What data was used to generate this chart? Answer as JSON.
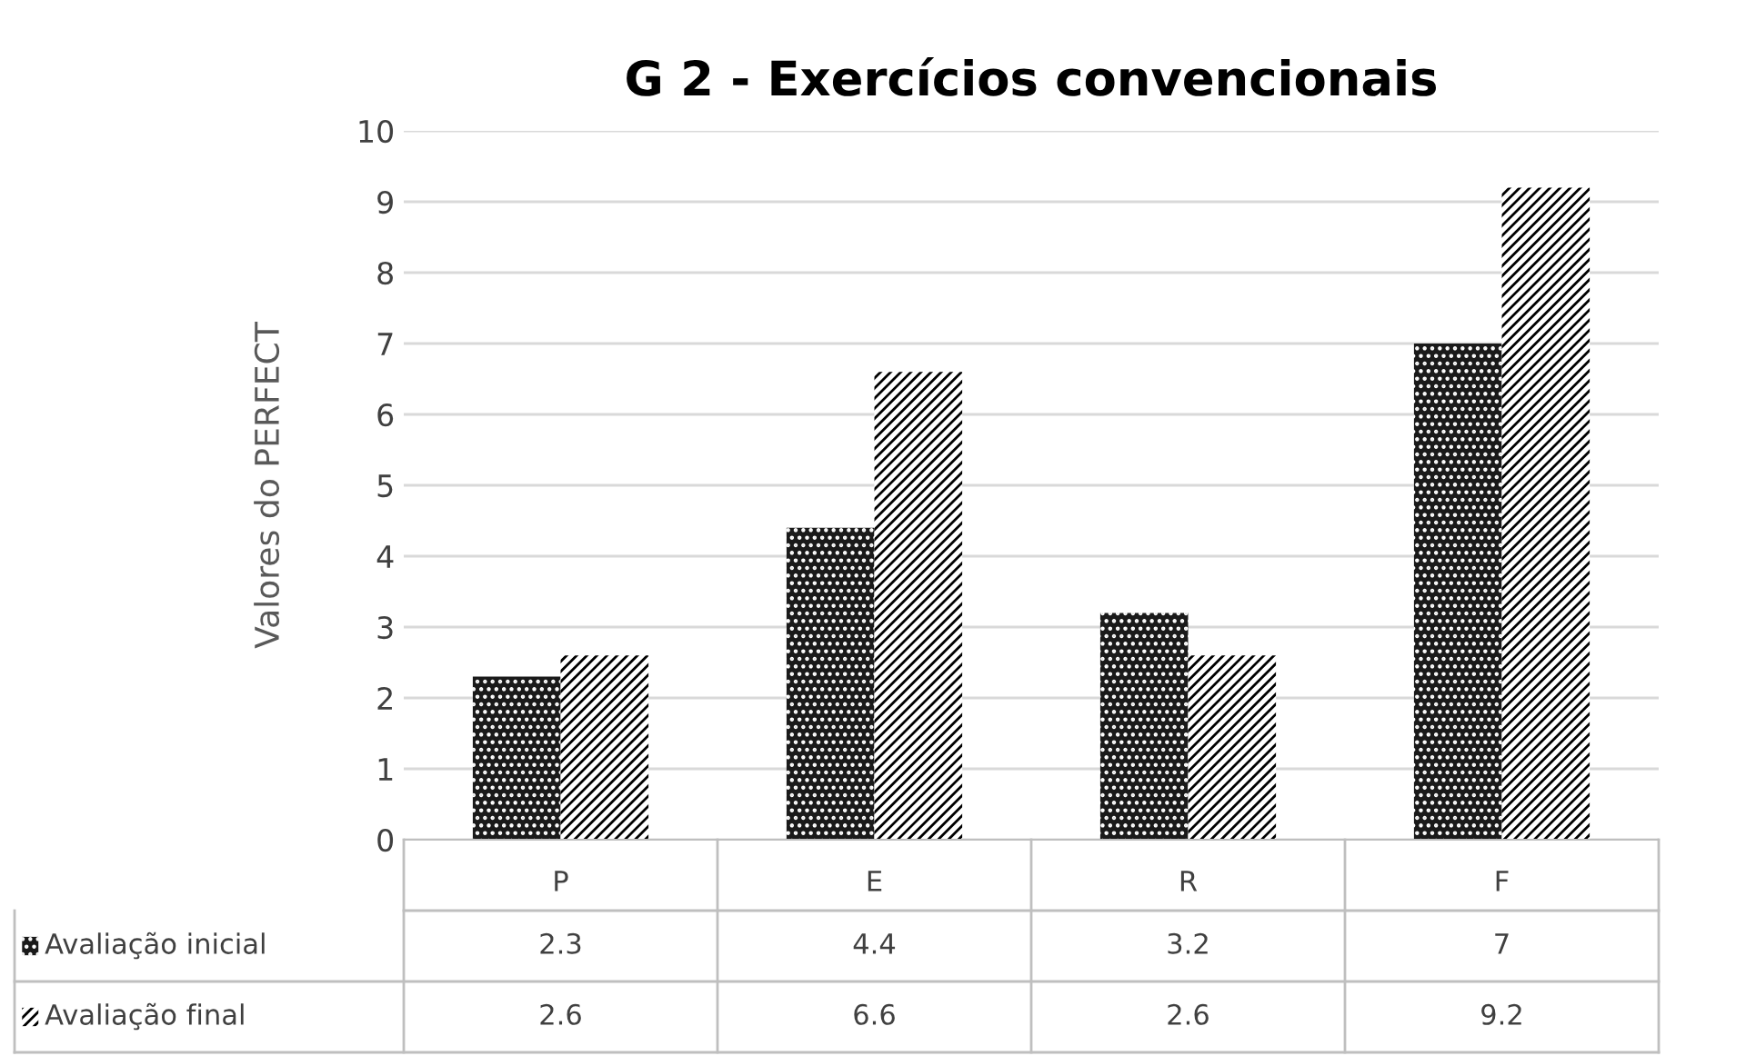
{
  "chart_data": {
    "type": "bar",
    "title": "G 2 - Exercícios convencionais",
    "ylabel": "Valores do PERFECT",
    "categories": [
      "P",
      "E",
      "R",
      "F"
    ],
    "series": [
      {
        "name": "Avaliação inicial",
        "color": "#1a1a1a",
        "values": [
          2.3,
          4.4,
          3.2,
          7
        ]
      },
      {
        "name": "Avaliação final",
        "color": "#ffffff",
        "values": [
          2.6,
          6.6,
          2.6,
          9.2
        ]
      }
    ],
    "ylim": [
      0,
      10
    ],
    "yticks": [
      0,
      1,
      2,
      3,
      4,
      5,
      6,
      7,
      8,
      9,
      10
    ],
    "grid": "y",
    "data_labels": true,
    "legend": "bottom"
  }
}
